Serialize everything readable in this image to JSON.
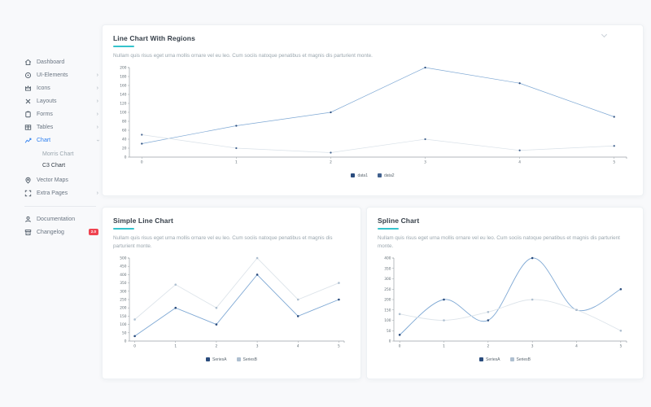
{
  "colors": {
    "accent": "#2d7ff0",
    "title_underline": "#35c3cc",
    "badge_bg": "#ef4350",
    "card_bg": "#ffffff",
    "page_bg": "#f8f9fb"
  },
  "sidebar": {
    "items": [
      {
        "label": "Dashboard",
        "icon": "home-icon",
        "has_submenu": false
      },
      {
        "label": "UI-Elements",
        "icon": "target-icon",
        "has_submenu": true
      },
      {
        "label": "Icons",
        "icon": "crown-icon",
        "has_submenu": true
      },
      {
        "label": "Layouts",
        "icon": "close-icon",
        "has_submenu": true
      },
      {
        "label": "Forms",
        "icon": "clipboard-icon",
        "has_submenu": true
      },
      {
        "label": "Tables",
        "icon": "table-icon",
        "has_submenu": true
      },
      {
        "label": "Chart",
        "icon": "line-chart-icon",
        "has_submenu": true,
        "active": true,
        "expanded": true,
        "submenu": [
          "Morris Chart",
          "C3 Chart"
        ],
        "active_submenu": "C3 Chart"
      },
      {
        "label": "Vector Maps",
        "icon": "map-pin-icon",
        "has_submenu": false
      },
      {
        "label": "Extra Pages",
        "icon": "expand-icon",
        "has_submenu": true
      }
    ],
    "footer_items": [
      {
        "label": "Documentation",
        "icon": "user-icon"
      },
      {
        "label": "Changelog",
        "icon": "archive-icon",
        "badge": "2.0"
      }
    ]
  },
  "cards": [
    {
      "title": "Line Chart With Regions",
      "description": "Nullam quis risus eget urna mollis ornare vel eu leo. Cum sociis natoque penatibus et magnis dis parturient monte."
    },
    {
      "title": "Simple Line Chart",
      "description": "Nullam quis risus eget urna mollis ornare vel eu leo. Cum sociis natoque penatibus et magnis dis parturient monte."
    },
    {
      "title": "Spline Chart",
      "description": "Nullam quis risus eget urna mollis ornare vel eu leo. Cum sociis natoque penatibus et magnis dis parturient monte."
    }
  ],
  "chart_data": [
    {
      "type": "line",
      "title": "Line Chart With Regions",
      "x": [
        0,
        1,
        2,
        3,
        4,
        5
      ],
      "series": [
        {
          "name": "data1",
          "values": [
            30,
            70,
            100,
            200,
            165,
            90
          ],
          "line_color": "#7ea8d4",
          "point_color": "#2a4c7d"
        },
        {
          "name": "data2",
          "values": [
            50,
            20,
            10,
            40,
            15,
            25
          ],
          "line_color": "#d9e1e8",
          "point_color": "#41618e"
        }
      ],
      "xlabel": "",
      "ylabel": "",
      "ylim": [
        0,
        200
      ],
      "ytick_step": 20,
      "grid": false,
      "legend_position": "bottom",
      "line_width": 0.7,
      "point_radius": 1.1
    },
    {
      "type": "line",
      "title": "Simple Line Chart",
      "x": [
        0,
        1,
        2,
        3,
        4,
        5
      ],
      "series": [
        {
          "name": "SeriesA",
          "values": [
            30,
            200,
            100,
            400,
            150,
            250
          ],
          "line_color": "#7ea8d4",
          "point_color": "#2a4c7d"
        },
        {
          "name": "SeriesB",
          "values": [
            130,
            340,
            200,
            500,
            250,
            350
          ],
          "line_color": "#dde4ea",
          "point_color": "#aebfd0"
        }
      ],
      "xlabel": "",
      "ylabel": "",
      "ylim": [
        0,
        500
      ],
      "ytick_step": 50,
      "grid": false,
      "legend_position": "bottom",
      "line_width": 0.9,
      "point_radius": 1.3
    },
    {
      "type": "spline",
      "title": "Spline Chart",
      "x": [
        0,
        1,
        2,
        3,
        4,
        5
      ],
      "series": [
        {
          "name": "SeriesA",
          "values": [
            30,
            200,
            100,
            400,
            150,
            250
          ],
          "line_color": "#7ea8d4",
          "point_color": "#2a4c7d"
        },
        {
          "name": "SeriesB",
          "values": [
            130,
            100,
            140,
            200,
            150,
            50
          ],
          "line_color": "#dde4ea",
          "point_color": "#aebfd0"
        }
      ],
      "xlabel": "",
      "ylabel": "",
      "ylim": [
        0,
        400
      ],
      "ytick_step": 50,
      "grid": false,
      "legend_position": "bottom",
      "line_width": 0.9,
      "point_radius": 1.3
    }
  ]
}
